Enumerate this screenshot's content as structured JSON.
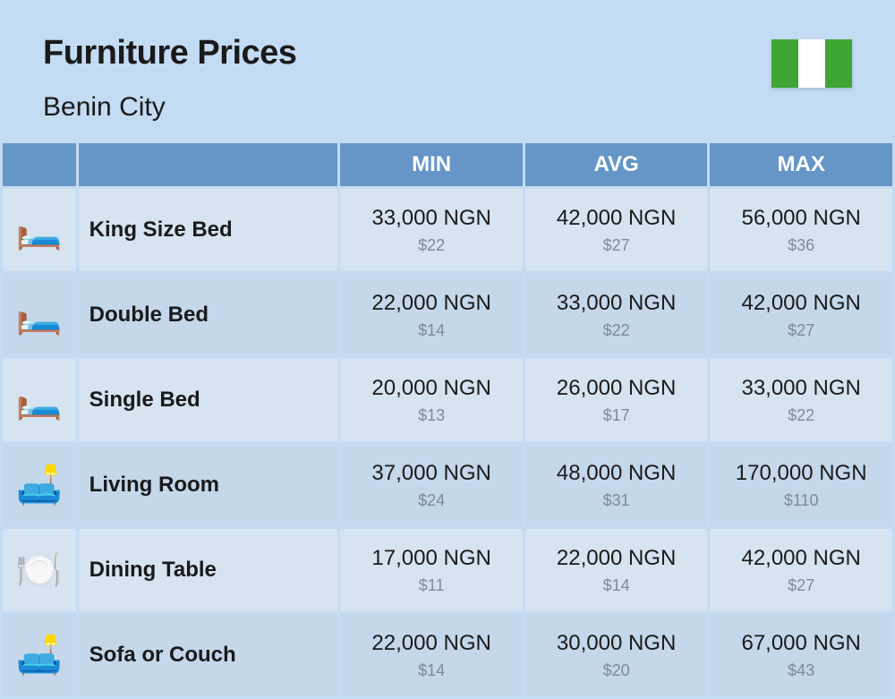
{
  "header": {
    "title": "Furniture Prices",
    "subtitle": "Benin City",
    "flag_colors": [
      "#3fa535",
      "#ffffff",
      "#3fa535"
    ]
  },
  "table": {
    "columns": [
      "MIN",
      "AVG",
      "MAX"
    ],
    "header_bg": "#6596c7",
    "header_text_color": "#ffffff",
    "row_alt_colors": [
      "#d6e3f1",
      "#c4d7eb"
    ],
    "ngn_text_color": "#1a1a1a",
    "usd_text_color": "#7d8a99",
    "name_fontsize": 24,
    "ngn_fontsize": 24,
    "usd_fontsize": 18,
    "rows": [
      {
        "icon": "🛏️",
        "name": "King Size Bed",
        "min_ngn": "33,000 NGN",
        "min_usd": "$22",
        "avg_ngn": "42,000 NGN",
        "avg_usd": "$27",
        "max_ngn": "56,000 NGN",
        "max_usd": "$36"
      },
      {
        "icon": "🛏️",
        "name": "Double Bed",
        "min_ngn": "22,000 NGN",
        "min_usd": "$14",
        "avg_ngn": "33,000 NGN",
        "avg_usd": "$22",
        "max_ngn": "42,000 NGN",
        "max_usd": "$27"
      },
      {
        "icon": "🛏️",
        "name": "Single Bed",
        "min_ngn": "20,000 NGN",
        "min_usd": "$13",
        "avg_ngn": "26,000 NGN",
        "avg_usd": "$17",
        "max_ngn": "33,000 NGN",
        "max_usd": "$22"
      },
      {
        "icon": "🛋️",
        "name": "Living Room",
        "min_ngn": "37,000 NGN",
        "min_usd": "$24",
        "avg_ngn": "48,000 NGN",
        "avg_usd": "$31",
        "max_ngn": "170,000 NGN",
        "max_usd": "$110"
      },
      {
        "icon": "🍽️",
        "name": "Dining Table",
        "min_ngn": "17,000 NGN",
        "min_usd": "$11",
        "avg_ngn": "22,000 NGN",
        "avg_usd": "$14",
        "max_ngn": "42,000 NGN",
        "max_usd": "$27"
      },
      {
        "icon": "🛋️",
        "name": "Sofa or Couch",
        "min_ngn": "22,000 NGN",
        "min_usd": "$14",
        "avg_ngn": "30,000 NGN",
        "avg_usd": "$20",
        "max_ngn": "67,000 NGN",
        "max_usd": "$43"
      }
    ]
  },
  "page_bg": "#c3dbf3"
}
